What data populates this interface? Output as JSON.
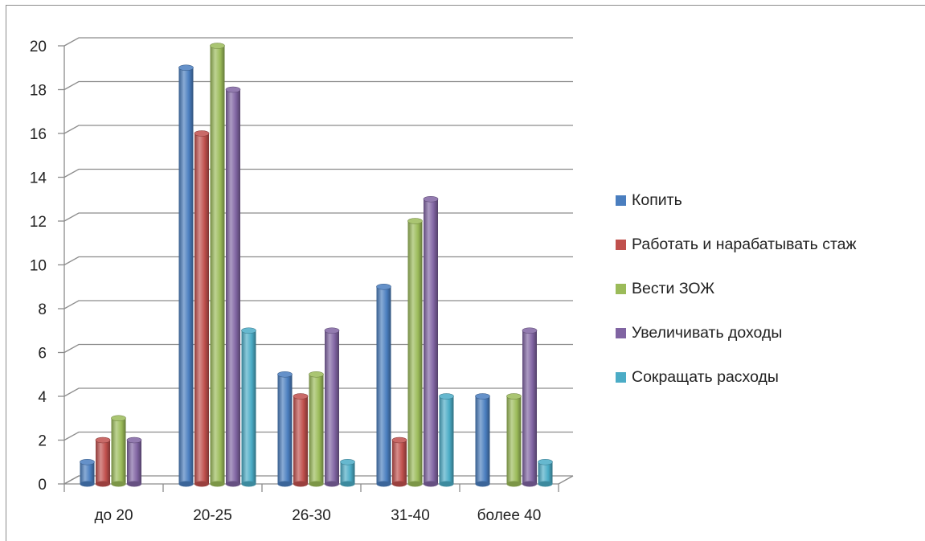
{
  "chart_data": {
    "type": "bar",
    "categories": [
      "до 20",
      "20-25",
      "26-30",
      "31-40",
      "более 40"
    ],
    "series": [
      {
        "name": "Копить",
        "values": [
          1,
          19,
          5,
          9,
          4
        ],
        "color": "#4a7ebf"
      },
      {
        "name": "Работать и нарабатывать стаж",
        "values": [
          2,
          16,
          4,
          2,
          0
        ],
        "color": "#c0504d"
      },
      {
        "name": "Вести ЗОЖ",
        "values": [
          3,
          20,
          5,
          12,
          4
        ],
        "color": "#9bbb59"
      },
      {
        "name": "Увеличивать доходы",
        "values": [
          2,
          18,
          7,
          13,
          7
        ],
        "color": "#8064a2"
      },
      {
        "name": "Сокращать расходы",
        "values": [
          0,
          7,
          1,
          4,
          1
        ],
        "color": "#4bacc6"
      }
    ],
    "y_ticks": [
      "0",
      "2",
      "4",
      "6",
      "8",
      "10",
      "12",
      "14",
      "16",
      "18",
      "20"
    ],
    "ylim": [
      0,
      20
    ],
    "grid": true,
    "legend_position": "right",
    "style": "3d-cylinder"
  }
}
